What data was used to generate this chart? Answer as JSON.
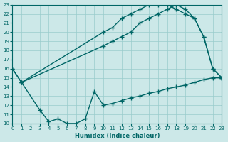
{
  "background_color": "#cce8e8",
  "grid_color": "#99cccc",
  "line_color": "#006666",
  "xlabel": "Humidex (Indice chaleur)",
  "ylim": [
    10,
    23
  ],
  "xlim": [
    0,
    23
  ],
  "yticks": [
    10,
    11,
    12,
    13,
    14,
    15,
    16,
    17,
    18,
    19,
    20,
    21,
    22,
    23
  ],
  "xticks": [
    0,
    1,
    2,
    3,
    4,
    5,
    6,
    7,
    8,
    9,
    10,
    11,
    12,
    13,
    14,
    15,
    16,
    17,
    18,
    19,
    20,
    21,
    22,
    23
  ],
  "line_max_x": [
    0,
    1,
    10,
    11,
    12,
    13,
    14,
    15,
    16,
    17,
    18,
    19,
    20,
    21,
    22,
    23
  ],
  "line_max_y": [
    16,
    14.5,
    20,
    20.5,
    21.5,
    22,
    22.5,
    23,
    23,
    23,
    22.5,
    22,
    21.5,
    19.5,
    16,
    15
  ],
  "line_mean_x": [
    0,
    1,
    10,
    11,
    12,
    13,
    14,
    15,
    16,
    17,
    18,
    19,
    20,
    21,
    22,
    23
  ],
  "line_mean_y": [
    16,
    14.5,
    18.5,
    19,
    19.5,
    20,
    21,
    21.5,
    22,
    22.5,
    23,
    22.5,
    21.5,
    19.5,
    16,
    15
  ],
  "line_min_x": [
    1,
    3,
    4,
    5,
    6,
    7,
    8,
    9,
    10,
    11,
    12,
    13,
    14,
    15,
    16,
    17,
    18,
    19,
    20,
    21,
    22,
    23
  ],
  "line_min_y": [
    14.5,
    11.5,
    10.2,
    10.5,
    10,
    10,
    10.5,
    13.5,
    12,
    12.2,
    12.5,
    12.8,
    13,
    13.3,
    13.5,
    13.8,
    14,
    14.2,
    14.5,
    14.8,
    15,
    15
  ]
}
